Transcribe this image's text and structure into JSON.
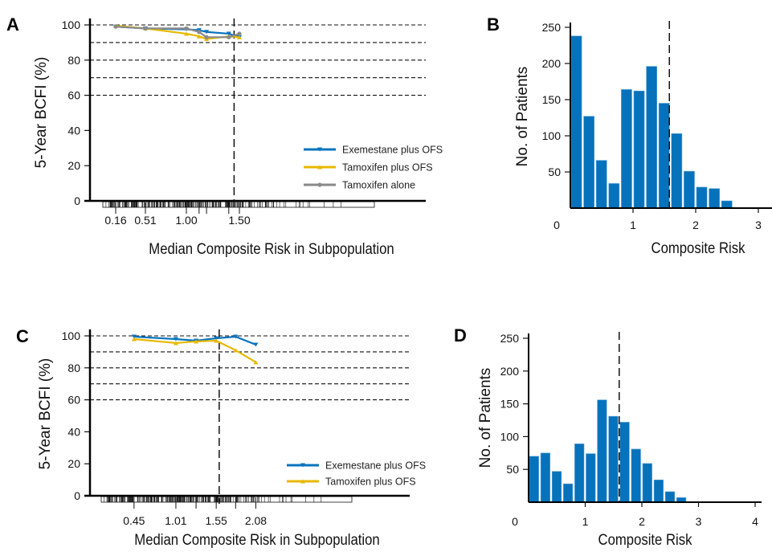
{
  "chart_data": [
    {
      "panel": "A",
      "type": "line",
      "xlabel": "Median Composite Risk in Subpopulation",
      "ylabel": "5-Year BCFI (%)",
      "ylim": [
        0,
        100
      ],
      "yticks": [
        0,
        20,
        40,
        60,
        80,
        100
      ],
      "xtick_labels": [
        "0.16",
        "0.51",
        "1.00",
        "1.50"
      ],
      "xtick_values": [
        0.16,
        0.51,
        1.0,
        1.5
      ],
      "dashed_gridlines_y": [
        60,
        70,
        80,
        90,
        100
      ],
      "reference_line_x": 1.45,
      "rug": true,
      "legend_position": "bottom-right",
      "x": [
        0.16,
        0.51,
        1.0,
        1.12,
        1.19,
        1.4,
        1.5
      ],
      "series": [
        {
          "name": "Exemestane plus OFS",
          "color": "#0a74bf",
          "marker": "triangle-down",
          "values": [
            99,
            98,
            97.5,
            97,
            96,
            95,
            93
          ]
        },
        {
          "name": "Tamoxifen plus OFS",
          "color": "#e8b800",
          "marker": "triangle-up",
          "values": [
            99.5,
            98,
            95,
            93.5,
            92,
            93.5,
            93
          ]
        },
        {
          "name": "Tamoxifen alone",
          "color": "#8a8a8a",
          "marker": "circle",
          "values": [
            99,
            98,
            98,
            96,
            93,
            93,
            95
          ]
        }
      ]
    },
    {
      "panel": "B",
      "type": "bar",
      "xlabel": "Composite Risk",
      "ylabel": "No. of Patients",
      "ylim": [
        0,
        250
      ],
      "yticks": [
        50,
        100,
        150,
        200,
        250
      ],
      "xticks": [
        0,
        1,
        2,
        3
      ],
      "bin_width": 0.2,
      "bin_starts": [
        0,
        0.2,
        0.4,
        0.6,
        0.8,
        1.0,
        1.2,
        1.4,
        1.6,
        1.8,
        2.0,
        2.2,
        2.4
      ],
      "values": [
        238,
        127,
        66,
        34,
        164,
        162,
        196,
        145,
        103,
        51,
        29,
        27,
        10
      ],
      "color": "#0572bb",
      "reference_line_x": 1.58
    },
    {
      "panel": "C",
      "type": "line",
      "xlabel": "Median Composite Risk in Subpopulation",
      "ylabel": "5-Year BCFI (%)",
      "ylim": [
        0,
        100
      ],
      "yticks": [
        0,
        20,
        40,
        60,
        80,
        100
      ],
      "xtick_labels": [
        "0.45",
        "1.01",
        "1.55",
        "2.08"
      ],
      "xtick_values": [
        0.45,
        1.01,
        1.55,
        2.08
      ],
      "dashed_gridlines_y": [
        60,
        70,
        80,
        90,
        100
      ],
      "reference_line_x": 1.59,
      "rug": true,
      "legend_position": "bottom-right",
      "x": [
        0.45,
        1.01,
        1.28,
        1.55,
        1.81,
        2.08
      ],
      "series": [
        {
          "name": "Exemestane plus OFS",
          "color": "#0a74bf",
          "marker": "triangle-down",
          "values": [
            99.5,
            98,
            97,
            98.5,
            99.5,
            94.5
          ]
        },
        {
          "name": "Tamoxifen plus OFS",
          "color": "#e8b800",
          "marker": "triangle-up",
          "values": [
            98,
            95.5,
            96.5,
            97,
            91,
            83.5
          ]
        }
      ]
    },
    {
      "panel": "D",
      "type": "bar",
      "xlabel": "Composite Risk",
      "ylabel": "No. of Patients",
      "ylim": [
        0,
        250
      ],
      "yticks": [
        50,
        100,
        150,
        200,
        250
      ],
      "xticks": [
        0,
        1,
        2,
        3,
        4
      ],
      "bin_width": 0.2,
      "bin_starts": [
        0,
        0.2,
        0.4,
        0.6,
        0.8,
        1.0,
        1.2,
        1.4,
        1.6,
        1.8,
        2.0,
        2.2,
        2.4,
        2.6
      ],
      "values": [
        70,
        75,
        47,
        28,
        89,
        74,
        156,
        131,
        122,
        81,
        59,
        34,
        16,
        7
      ],
      "color": "#0572bb",
      "reference_line_x": 1.6
    }
  ]
}
